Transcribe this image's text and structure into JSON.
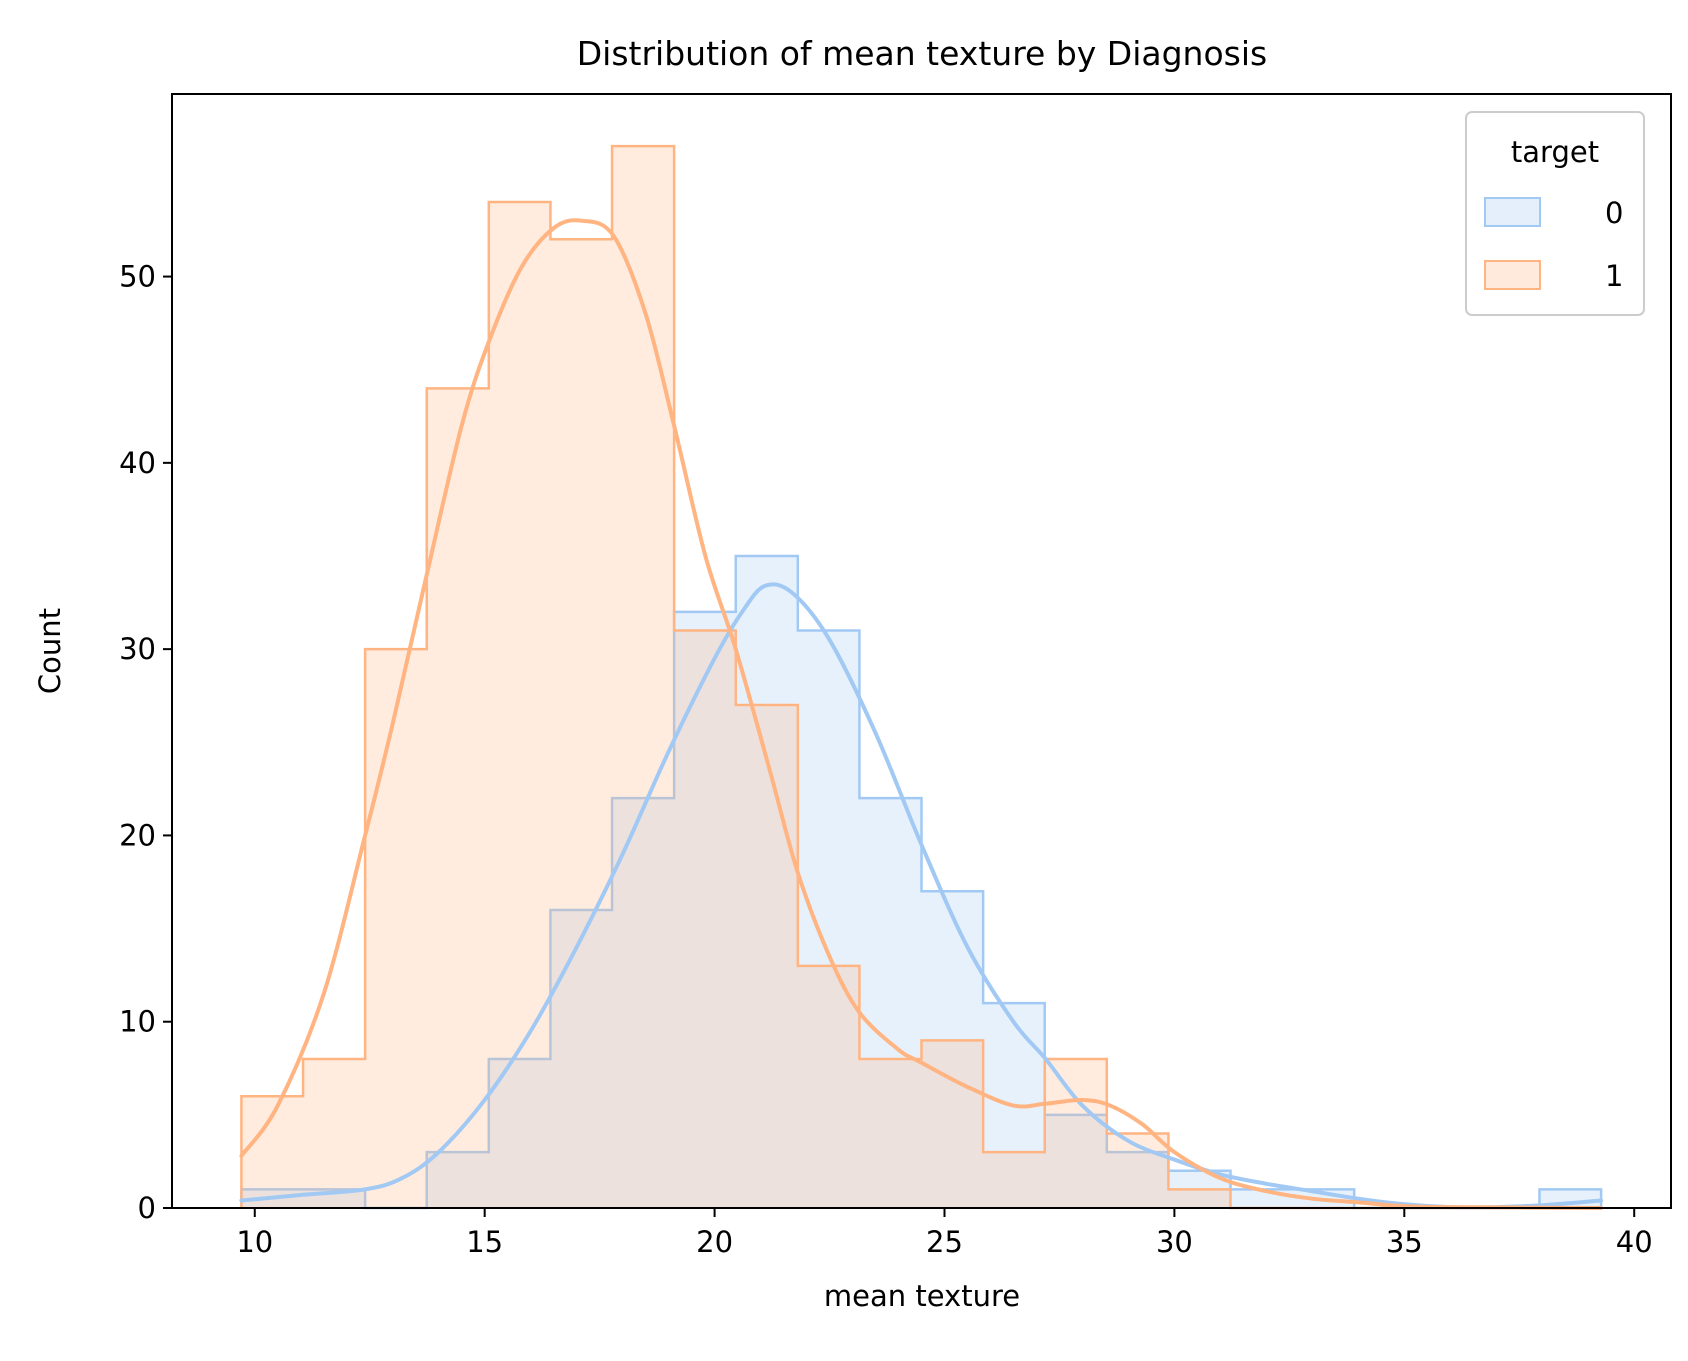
{
  "chart_data": {
    "type": "histogram",
    "title": "Distribution of mean texture by Diagnosis",
    "xlabel": "mean texture",
    "ylabel": "Count",
    "xlim": [
      8.2,
      40.8
    ],
    "ylim": [
      0,
      59.8
    ],
    "x_ticks": [
      10,
      15,
      20,
      25,
      30,
      35,
      40
    ],
    "y_ticks": [
      0,
      10,
      20,
      30,
      40,
      50
    ],
    "bin_edges": [
      9.71,
      11.05,
      12.4,
      13.74,
      15.09,
      16.43,
      17.77,
      19.12,
      20.46,
      21.81,
      23.15,
      24.5,
      25.84,
      27.18,
      28.53,
      29.87,
      31.22,
      32.56,
      33.91,
      35.25,
      36.59,
      37.94,
      39.28
    ],
    "legend": {
      "title": "target",
      "position": "top-right"
    },
    "series": [
      {
        "name": "0",
        "color": "#a1c9f4",
        "fill": "#e4effb",
        "counts": [
          1,
          1,
          0,
          3,
          8,
          16,
          22,
          32,
          35,
          31,
          22,
          17,
          11,
          5,
          3,
          2,
          1,
          1,
          0,
          0,
          0,
          1
        ],
        "kde": [
          [
            9.71,
            0.4
          ],
          [
            11.0,
            0.7
          ],
          [
            12.4,
            1.0
          ],
          [
            13.2,
            1.6
          ],
          [
            14.0,
            3.0
          ],
          [
            15.0,
            5.8
          ],
          [
            16.0,
            9.5
          ],
          [
            17.0,
            14.0
          ],
          [
            18.0,
            19.0
          ],
          [
            19.0,
            24.5
          ],
          [
            20.0,
            29.5
          ],
          [
            20.6,
            32.0
          ],
          [
            21.1,
            33.4
          ],
          [
            21.7,
            33.0
          ],
          [
            22.5,
            30.5
          ],
          [
            23.5,
            25.5
          ],
          [
            24.5,
            19.5
          ],
          [
            25.5,
            14.0
          ],
          [
            26.5,
            10.0
          ],
          [
            27.2,
            8.0
          ],
          [
            28.0,
            5.5
          ],
          [
            29.0,
            3.6
          ],
          [
            30.0,
            2.6
          ],
          [
            31.0,
            1.8
          ],
          [
            32.0,
            1.3
          ],
          [
            33.0,
            0.9
          ],
          [
            34.0,
            0.5
          ],
          [
            35.0,
            0.2
          ],
          [
            36.0,
            0.05
          ],
          [
            37.0,
            0.05
          ],
          [
            38.0,
            0.15
          ],
          [
            39.28,
            0.4
          ]
        ]
      },
      {
        "name": "1",
        "color": "#ffb482",
        "fill": "#ffeadc",
        "counts": [
          6,
          8,
          30,
          44,
          54,
          52,
          57,
          31,
          27,
          13,
          8,
          9,
          3,
          8,
          4,
          1,
          0,
          0,
          0,
          0,
          0,
          0
        ],
        "kde": [
          [
            9.71,
            2.8
          ],
          [
            10.5,
            5.5
          ],
          [
            11.5,
            11.5
          ],
          [
            12.4,
            20.0
          ],
          [
            13.0,
            26.0
          ],
          [
            13.74,
            34.0
          ],
          [
            14.5,
            42.0
          ],
          [
            15.09,
            46.5
          ],
          [
            15.8,
            50.5
          ],
          [
            16.5,
            52.6
          ],
          [
            17.1,
            53.0
          ],
          [
            17.8,
            52.2
          ],
          [
            18.5,
            48.0
          ],
          [
            19.12,
            42.0
          ],
          [
            19.8,
            35.0
          ],
          [
            20.46,
            30.0
          ],
          [
            21.2,
            23.5
          ],
          [
            21.81,
            18.0
          ],
          [
            22.5,
            13.5
          ],
          [
            23.15,
            10.5
          ],
          [
            24.0,
            8.5
          ],
          [
            24.5,
            7.8
          ],
          [
            25.5,
            6.5
          ],
          [
            26.5,
            5.5
          ],
          [
            27.2,
            5.6
          ],
          [
            28.0,
            5.8
          ],
          [
            28.6,
            5.5
          ],
          [
            29.3,
            4.5
          ],
          [
            30.0,
            3.0
          ],
          [
            31.0,
            1.6
          ],
          [
            32.0,
            0.9
          ],
          [
            33.0,
            0.5
          ],
          [
            34.0,
            0.3
          ],
          [
            35.0,
            0.1
          ],
          [
            36.0,
            0.05
          ],
          [
            39.28,
            0.0
          ]
        ]
      }
    ]
  }
}
